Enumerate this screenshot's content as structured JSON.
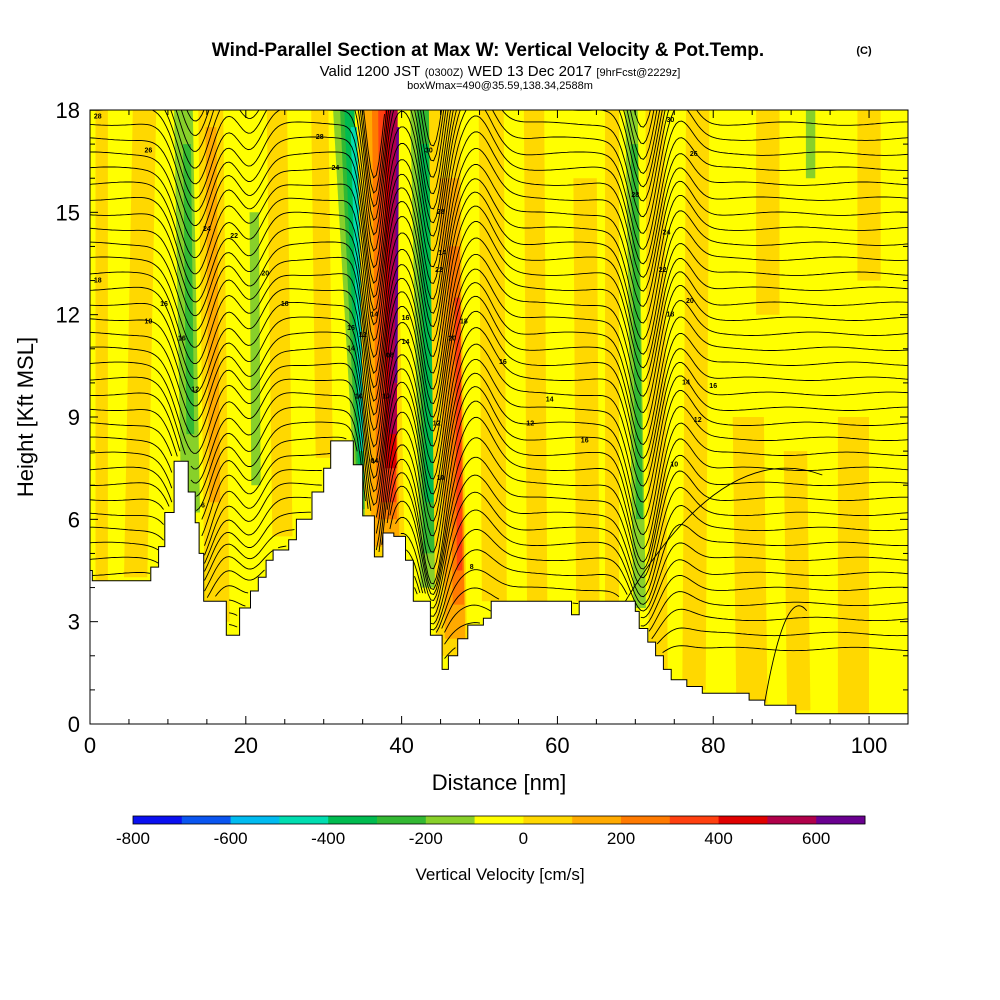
{
  "chart_data": {
    "type": "heatmap",
    "title": "Wind-Parallel Section at Max W: Vertical Velocity & Pot.Temp.",
    "title_mark": "(C)",
    "subtitle": {
      "valid_label": "Valid 1200 JST",
      "zulu": "(0300Z)",
      "date": "WED 13 Dec 2017",
      "forecast": "[9hrFcst@2229z]"
    },
    "note": "boxWmax=490@35.59,138.34,2588m",
    "xlabel": "Distance [nm]",
    "ylabel": "Height [Kft MSL]",
    "xlim": [
      0,
      105
    ],
    "ylim": [
      0,
      18
    ],
    "x_ticks": [
      "0",
      "20",
      "40",
      "60",
      "80",
      "100"
    ],
    "y_ticks": [
      "0",
      "3",
      "6",
      "9",
      "12",
      "15",
      "18"
    ],
    "colorbar": {
      "label": "Vertical Velocity [cm/s]",
      "range": [
        -800,
        700
      ],
      "step": 100,
      "tick_labels": [
        "-800",
        "-600",
        "-400",
        "-200",
        "0",
        "200",
        "400",
        "600"
      ],
      "colors": [
        "#0a10f0",
        "#0a55f0",
        "#00bbf0",
        "#00ddb0",
        "#00bb50",
        "#33b833",
        "#88d02a",
        "#ffff00",
        "#ffd800",
        "#ffaa00",
        "#ff7a00",
        "#ff4010",
        "#e00000",
        "#b0004a",
        "#6a0090"
      ]
    },
    "updrafts": [
      {
        "x": 38.5,
        "peak_cm_s": 490
      },
      {
        "x": 46,
        "peak_cm_s": 180
      },
      {
        "x": 15,
        "peak_cm_s": 120
      }
    ],
    "downdrafts": [
      {
        "x": 35.5,
        "min_cm_s": -450
      },
      {
        "x": 43.5,
        "min_cm_s": -260
      },
      {
        "x": 12,
        "min_cm_s": -180
      },
      {
        "x": 70,
        "min_cm_s": -150
      }
    ],
    "contour_labels": [
      {
        "text": "28",
        "x": 1,
        "y": 17.8
      },
      {
        "text": "28",
        "x": 29.5,
        "y": 17.2
      },
      {
        "text": "26",
        "x": 7.5,
        "y": 16.8
      },
      {
        "text": "24",
        "x": 15,
        "y": 14.5
      },
      {
        "text": "22",
        "x": 18.5,
        "y": 14.3
      },
      {
        "text": "20",
        "x": 22.5,
        "y": 13.2
      },
      {
        "text": "18",
        "x": 1,
        "y": 13.0
      },
      {
        "text": "16",
        "x": 9.5,
        "y": 12.3
      },
      {
        "text": "18",
        "x": 25,
        "y": 12.3
      },
      {
        "text": "10",
        "x": 7.5,
        "y": 11.8
      },
      {
        "text": "16",
        "x": 11.8,
        "y": 11.3
      },
      {
        "text": "12",
        "x": 13.5,
        "y": 9.8
      },
      {
        "text": "24",
        "x": 31.5,
        "y": 16.3
      },
      {
        "text": "14",
        "x": 36.5,
        "y": 12.0
      },
      {
        "text": "16",
        "x": 33.5,
        "y": 11.6
      },
      {
        "text": "14",
        "x": 33.5,
        "y": 11.0
      },
      {
        "text": "12",
        "x": 35.0,
        "y": 11.4
      },
      {
        "text": "08",
        "x": 38.5,
        "y": 10.8
      },
      {
        "text": "14",
        "x": 40.5,
        "y": 11.2
      },
      {
        "text": "16",
        "x": 40.5,
        "y": 11.9
      },
      {
        "text": "10",
        "x": 34.5,
        "y": 9.6
      },
      {
        "text": "10",
        "x": 38,
        "y": 9.6
      },
      {
        "text": "04",
        "x": 36.5,
        "y": 7.7
      },
      {
        "text": "30",
        "x": 43.5,
        "y": 16.8
      },
      {
        "text": "28",
        "x": 45,
        "y": 15.0
      },
      {
        "text": "14",
        "x": 45.2,
        "y": 13.8
      },
      {
        "text": "22",
        "x": 44.8,
        "y": 13.3
      },
      {
        "text": "18",
        "x": 48,
        "y": 11.8
      },
      {
        "text": "20",
        "x": 46.5,
        "y": 11.3
      },
      {
        "text": "16",
        "x": 53,
        "y": 10.6
      },
      {
        "text": "14",
        "x": 59,
        "y": 9.5
      },
      {
        "text": "12",
        "x": 56.5,
        "y": 8.8
      },
      {
        "text": "12",
        "x": 44.5,
        "y": 8.8
      },
      {
        "text": "10",
        "x": 45,
        "y": 7.2
      },
      {
        "text": "16",
        "x": 63.5,
        "y": 8.3
      },
      {
        "text": "8",
        "x": 49,
        "y": 4.6
      },
      {
        "text": "6",
        "x": 14.5,
        "y": 6.4
      },
      {
        "text": "28",
        "x": 70,
        "y": 15.5
      },
      {
        "text": "30",
        "x": 74.5,
        "y": 17.7
      },
      {
        "text": "26",
        "x": 77.5,
        "y": 16.7
      },
      {
        "text": "24",
        "x": 74,
        "y": 14.4
      },
      {
        "text": "22",
        "x": 73.5,
        "y": 13.3
      },
      {
        "text": "18",
        "x": 74.5,
        "y": 12.0
      },
      {
        "text": "20",
        "x": 77,
        "y": 12.4
      },
      {
        "text": "14",
        "x": 76.5,
        "y": 10.0
      },
      {
        "text": "16",
        "x": 80,
        "y": 9.9
      },
      {
        "text": "12",
        "x": 78,
        "y": 8.9
      },
      {
        "text": "10",
        "x": 75,
        "y": 7.6
      }
    ]
  }
}
